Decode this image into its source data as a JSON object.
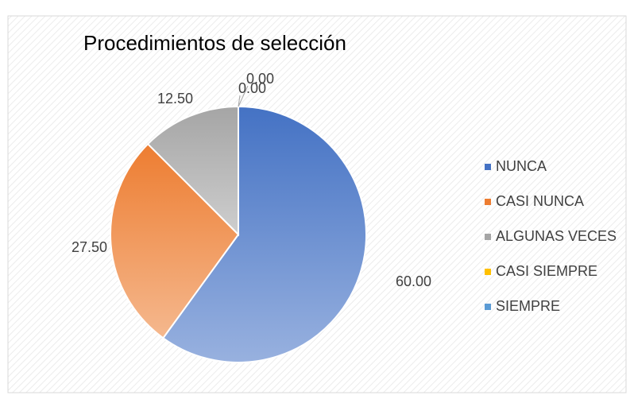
{
  "chart_data": {
    "type": "pie",
    "title": "Procedimientos de selección",
    "categories": [
      "NUNCA",
      "CASI NUNCA",
      "ALGUNAS VECES",
      "CASI SIEMPRE",
      "SIEMPRE"
    ],
    "values": [
      60,
      27.5,
      12.5,
      0,
      0
    ],
    "value_labels": [
      "60.00",
      "27.50",
      "12.50",
      "0.00",
      "0.00"
    ],
    "colors": [
      "#4472c4",
      "#ed7d31",
      "#a5a5a5",
      "#ffc000",
      "#5b9bd5"
    ],
    "legend": "right"
  }
}
